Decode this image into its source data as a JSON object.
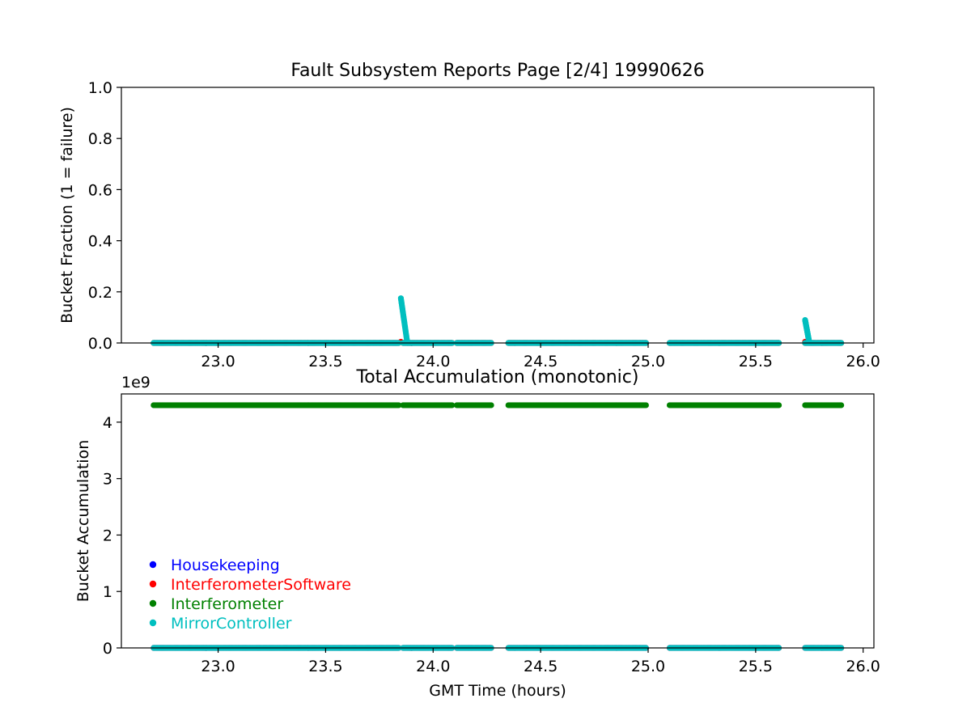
{
  "chart_data": [
    {
      "type": "scatter",
      "title": "Fault Subsystem Reports Page [2/4] 19990626",
      "xlabel": "",
      "ylabel": "Bucket Fraction (1 = failure)",
      "xlim": [
        22.55,
        26.05
      ],
      "ylim": [
        0,
        1.0
      ],
      "xticks": [
        23.0,
        23.5,
        24.0,
        24.5,
        25.0,
        25.5,
        26.0
      ],
      "xtick_labels": [
        "23.0",
        "23.5",
        "24.0",
        "24.5",
        "25.0",
        "25.5",
        "26.0"
      ],
      "yticks": [
        0.0,
        0.2,
        0.4,
        0.6,
        0.8,
        1.0
      ],
      "ytick_labels": [
        "0.0",
        "0.2",
        "0.4",
        "0.6",
        "0.8",
        "1.0"
      ],
      "grid": false,
      "segments": [
        [
          22.7,
          23.84
        ],
        [
          23.86,
          24.09
        ],
        [
          24.11,
          24.27
        ],
        [
          24.35,
          24.99
        ],
        [
          25.1,
          25.61
        ],
        [
          25.73,
          25.9
        ]
      ],
      "series": [
        {
          "name": "Housekeeping",
          "color": "#0000ff",
          "points": "baseline-zero"
        },
        {
          "name": "InterferometerSoftware",
          "color": "#ff0000",
          "points": "baseline-zero",
          "extra_points": [
            [
              23.85,
              0.005
            ],
            [
              25.73,
              0.005
            ]
          ]
        },
        {
          "name": "Interferometer",
          "color": "#008000",
          "points": "baseline-zero"
        },
        {
          "name": "MirrorController",
          "color": "#00bfbf",
          "points": "baseline-zero",
          "spikes": [
            {
              "x_start": 23.85,
              "x_end": 23.88,
              "y_start": 0.175,
              "y_end": 0.0
            },
            {
              "x_start": 25.73,
              "x_end": 25.75,
              "y_start": 0.09,
              "y_end": 0.0
            }
          ]
        }
      ]
    },
    {
      "type": "scatter",
      "title": "Total Accumulation (monotonic)",
      "xlabel": "GMT Time (hours)",
      "ylabel": "Bucket Accumulation",
      "xlim": [
        22.55,
        26.05
      ],
      "ylim": [
        0,
        4500000000.0
      ],
      "offset_label": "1e9",
      "xticks": [
        23.0,
        23.5,
        24.0,
        24.5,
        25.0,
        25.5,
        26.0
      ],
      "xtick_labels": [
        "23.0",
        "23.5",
        "24.0",
        "24.5",
        "25.0",
        "25.5",
        "26.0"
      ],
      "yticks": [
        0,
        1000000000.0,
        2000000000.0,
        3000000000.0,
        4000000000.0
      ],
      "ytick_labels": [
        "0",
        "1",
        "2",
        "3",
        "4"
      ],
      "grid": false,
      "segments": [
        [
          22.7,
          23.84
        ],
        [
          23.86,
          24.09
        ],
        [
          24.11,
          24.27
        ],
        [
          24.35,
          24.99
        ],
        [
          25.1,
          25.61
        ],
        [
          25.73,
          25.9
        ]
      ],
      "series": [
        {
          "name": "Housekeeping",
          "color": "#0000ff",
          "value": 0
        },
        {
          "name": "InterferometerSoftware",
          "color": "#ff0000",
          "value": 0
        },
        {
          "name": "Interferometer",
          "color": "#008000",
          "value": 4300000000.0
        },
        {
          "name": "MirrorController",
          "color": "#00bfbf",
          "value": 0
        }
      ],
      "legend": {
        "placement": "lower-left",
        "entries": [
          {
            "label": "Housekeeping",
            "color": "#0000ff"
          },
          {
            "label": "InterferometerSoftware",
            "color": "#ff0000"
          },
          {
            "label": "Interferometer",
            "color": "#008000"
          },
          {
            "label": "MirrorController",
            "color": "#00bfbf"
          }
        ]
      }
    }
  ]
}
